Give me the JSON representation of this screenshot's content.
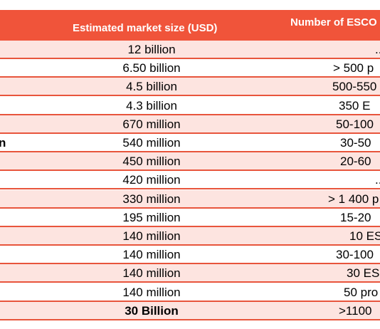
{
  "header": {
    "columns": [
      "Estimated market size (USD)",
      "Number of ESCO"
    ]
  },
  "table": {
    "rows": [
      [
        null,
        "12 billion",
        ".."
      ],
      [
        null,
        "6.50 billion",
        "> 500 p"
      ],
      [
        null,
        "4.5 billion",
        "500-550"
      ],
      [
        null,
        "4.3 billion",
        "350 E"
      ],
      [
        null,
        "670 million",
        "50-100"
      ],
      [
        "n",
        "540 million",
        "30-50"
      ],
      [
        null,
        "450 million",
        "20-60"
      ],
      [
        null,
        "420 million",
        ".."
      ],
      [
        null,
        "330 million",
        "> 1 400 p"
      ],
      [
        null,
        "195 million",
        "15-20"
      ],
      [
        null,
        "140 million",
        "10 ES"
      ],
      [
        null,
        "140 million",
        "30-100"
      ],
      [
        null,
        "140 million",
        "30 ES"
      ],
      [
        null,
        "140 million",
        "50 pro"
      ],
      [
        null,
        "30 Billion",
        ">1100"
      ]
    ]
  }
}
